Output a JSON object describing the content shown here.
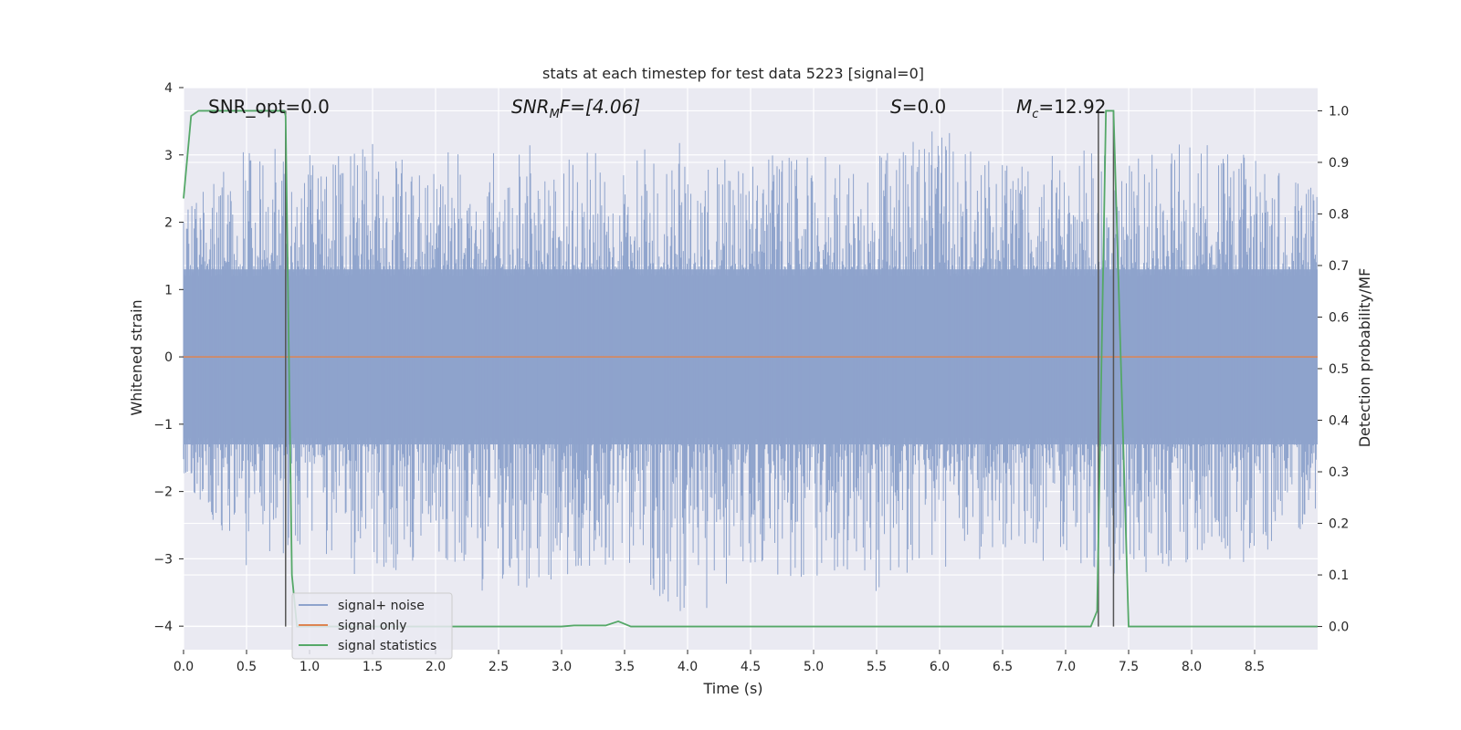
{
  "chart_data": {
    "type": "line",
    "title": "stats at each timestep for test data 5223 [signal=0]",
    "xlabel": "Time (s)",
    "ylabel": "Whitened strain",
    "y2label": "Detection probability/MF",
    "xlim": [
      0.0,
      9.0
    ],
    "ylim": [
      -4.35,
      4.0
    ],
    "y2lim": [
      -0.045,
      1.045
    ],
    "xticks": [
      "0.0",
      "0.5",
      "1.0",
      "1.5",
      "2.0",
      "2.5",
      "3.0",
      "3.5",
      "4.0",
      "4.5",
      "5.0",
      "5.5",
      "6.0",
      "6.5",
      "7.0",
      "7.5",
      "8.0",
      "8.5"
    ],
    "yticks": [
      "4",
      "3",
      "2",
      "1",
      "0",
      "−1",
      "−2",
      "−3",
      "−4"
    ],
    "y2ticks": [
      "1.0",
      "0.9",
      "0.8",
      "0.7",
      "0.6",
      "0.5",
      "0.4",
      "0.3",
      "0.2",
      "0.1",
      "0.0"
    ],
    "grid": true,
    "legend_position": "lower-left",
    "annotations": {
      "snr_opt": "SNR_opt=0.0",
      "snr_mf_sym": "SNR",
      "snr_mf_sub": "M",
      "snr_mf_tail": "F=[4.06]",
      "s_sym": "S",
      "s_tail": "=0.0",
      "mc_sym": "M",
      "mc_sub": "c",
      "mc_tail": "=12.92"
    },
    "series": [
      {
        "name": "signal+ noise",
        "color": "#8ea3cc",
        "axis": "left",
        "description": "whitened noise, roughly within [-4, 3.6]",
        "envelope_x": [
          0.0,
          0.5,
          1.0,
          1.5,
          2.0,
          2.5,
          3.0,
          3.5,
          4.0,
          4.5,
          5.0,
          5.5,
          6.0,
          6.5,
          7.0,
          7.5,
          8.0,
          8.5,
          9.0
        ],
        "envelope_max": [
          2.2,
          3.2,
          3.0,
          3.2,
          3.1,
          3.3,
          3.0,
          3.1,
          3.2,
          3.0,
          3.1,
          3.0,
          3.4,
          3.0,
          3.1,
          3.0,
          3.2,
          3.1,
          2.5
        ],
        "envelope_min": [
          -2.0,
          -3.1,
          -2.8,
          -3.4,
          -2.9,
          -3.7,
          -3.3,
          -3.0,
          -4.0,
          -3.2,
          -3.3,
          -3.5,
          -3.2,
          -3.0,
          -3.1,
          -3.3,
          -3.2,
          -3.1,
          -2.5
        ]
      },
      {
        "name": "signal only",
        "color": "#dd8452",
        "axis": "left",
        "x": [
          0.0,
          9.0
        ],
        "y": [
          0.0,
          0.0
        ]
      },
      {
        "name": "signal statistics",
        "color": "#55a868",
        "axis": "right",
        "x": [
          0.0,
          0.06,
          0.12,
          0.8,
          0.81,
          0.86,
          0.9,
          3.0,
          3.1,
          3.35,
          3.45,
          3.55,
          7.2,
          7.25,
          7.32,
          7.38,
          7.5,
          7.55,
          9.0
        ],
        "y": [
          0.83,
          0.99,
          1.0,
          1.0,
          0.99,
          0.1,
          0.0,
          0.0,
          0.002,
          0.002,
          0.01,
          0.0,
          0.0,
          0.03,
          1.0,
          1.0,
          0.0,
          0.0,
          0.0
        ]
      }
    ],
    "vlines": [
      0.81,
      7.26,
      7.38
    ]
  }
}
